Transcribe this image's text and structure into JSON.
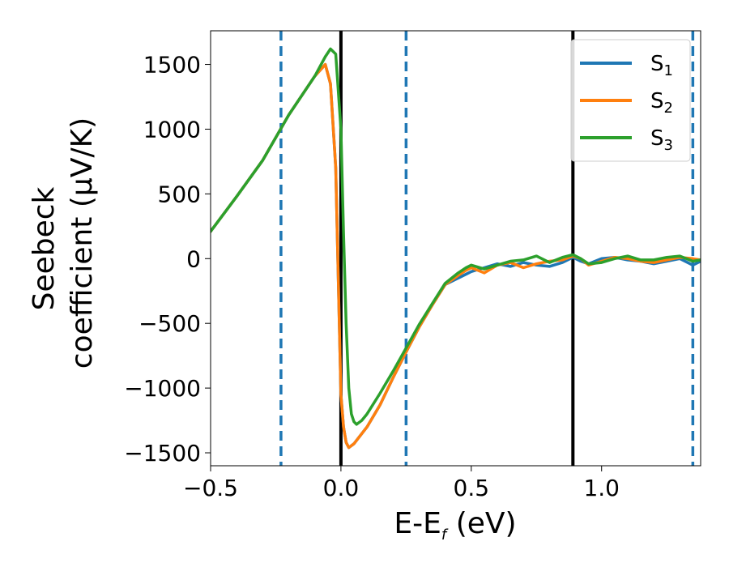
{
  "chart_data": {
    "type": "line",
    "xlabel": "E-E",
    "xlabel_sub": "f",
    "xlabel_unit": " (eV)",
    "ylabel_line1": "Seebeck",
    "ylabel_line2": "coefficient  (μV/K)",
    "xlim": [
      -0.5,
      1.38
    ],
    "ylim": [
      -1600,
      1760
    ],
    "x_ticks": [
      -0.5,
      0.0,
      0.5,
      1.0
    ],
    "x_tick_labels": [
      "−0.5",
      "0.0",
      "0.5",
      "1.0"
    ],
    "y_ticks": [
      -1500,
      -1000,
      -500,
      0,
      500,
      1000,
      1500
    ],
    "y_tick_labels": [
      "−1500",
      "−1000",
      "−500",
      "0",
      "500",
      "1000",
      "1500"
    ],
    "grid": false,
    "legend_position": "top-right",
    "vlines_solid": [
      0.0,
      0.89
    ],
    "vlines_dashed": [
      -0.23,
      0.25,
      1.35
    ],
    "vline_dashed_color": "#1f77b4",
    "vline_solid_color": "#000000",
    "series": [
      {
        "name": "S",
        "sub": "1",
        "color": "#1f77b4",
        "x": [
          -0.5,
          -0.4,
          -0.3,
          -0.2,
          -0.1,
          -0.06,
          -0.04,
          -0.02,
          0.0,
          0.01,
          0.02,
          0.03,
          0.05,
          0.1,
          0.15,
          0.2,
          0.25,
          0.3,
          0.35,
          0.4,
          0.45,
          0.48,
          0.5,
          0.55,
          0.6,
          0.65,
          0.7,
          0.75,
          0.8,
          0.85,
          0.89,
          0.92,
          0.95,
          1.0,
          1.05,
          1.1,
          1.15,
          1.2,
          1.25,
          1.3,
          1.35,
          1.38
        ],
        "y": [
          210,
          480,
          760,
          1110,
          1410,
          1500,
          1350,
          700,
          -1050,
          -1300,
          -1420,
          -1460,
          -1430,
          -1300,
          -1130,
          -920,
          -720,
          -530,
          -360,
          -200,
          -150,
          -120,
          -100,
          -70,
          -40,
          -60,
          -30,
          -50,
          -60,
          -30,
          10,
          -20,
          -40,
          0,
          10,
          -10,
          -20,
          -40,
          -20,
          0,
          -50,
          -20
        ]
      },
      {
        "name": "S",
        "sub": "2",
        "color": "#ff7f0e",
        "x": [
          -0.5,
          -0.4,
          -0.3,
          -0.2,
          -0.1,
          -0.06,
          -0.04,
          -0.02,
          0.0,
          0.01,
          0.02,
          0.03,
          0.05,
          0.1,
          0.15,
          0.2,
          0.25,
          0.3,
          0.35,
          0.4,
          0.45,
          0.48,
          0.5,
          0.55,
          0.6,
          0.65,
          0.7,
          0.75,
          0.8,
          0.85,
          0.89,
          0.92,
          0.95,
          1.0,
          1.05,
          1.1,
          1.15,
          1.2,
          1.25,
          1.3,
          1.35,
          1.38
        ],
        "y": [
          210,
          480,
          760,
          1110,
          1410,
          1500,
          1350,
          700,
          -1050,
          -1300,
          -1420,
          -1460,
          -1430,
          -1300,
          -1130,
          -920,
          -720,
          -530,
          -360,
          -200,
          -130,
          -90,
          -70,
          -110,
          -50,
          -30,
          -70,
          -40,
          -20,
          -10,
          20,
          0,
          -50,
          -20,
          10,
          0,
          -20,
          -30,
          -10,
          10,
          0,
          -10
        ]
      },
      {
        "name": "S",
        "sub": "3",
        "color": "#2ca02c",
        "x": [
          -0.5,
          -0.4,
          -0.3,
          -0.2,
          -0.1,
          -0.06,
          -0.04,
          -0.02,
          0.0,
          0.01,
          0.02,
          0.03,
          0.04,
          0.05,
          0.06,
          0.08,
          0.1,
          0.15,
          0.2,
          0.25,
          0.3,
          0.35,
          0.4,
          0.45,
          0.48,
          0.5,
          0.55,
          0.6,
          0.65,
          0.7,
          0.75,
          0.8,
          0.85,
          0.89,
          0.92,
          0.95,
          1.0,
          1.05,
          1.1,
          1.15,
          1.2,
          1.25,
          1.3,
          1.35,
          1.38
        ],
        "y": [
          210,
          480,
          760,
          1110,
          1410,
          1560,
          1620,
          1580,
          1000,
          200,
          -500,
          -1000,
          -1200,
          -1260,
          -1280,
          -1250,
          -1200,
          -1040,
          -870,
          -690,
          -510,
          -350,
          -190,
          -110,
          -70,
          -50,
          -80,
          -50,
          -20,
          -10,
          20,
          -30,
          10,
          30,
          0,
          -40,
          -30,
          0,
          20,
          -10,
          -10,
          10,
          20,
          -20,
          -10
        ]
      }
    ]
  }
}
